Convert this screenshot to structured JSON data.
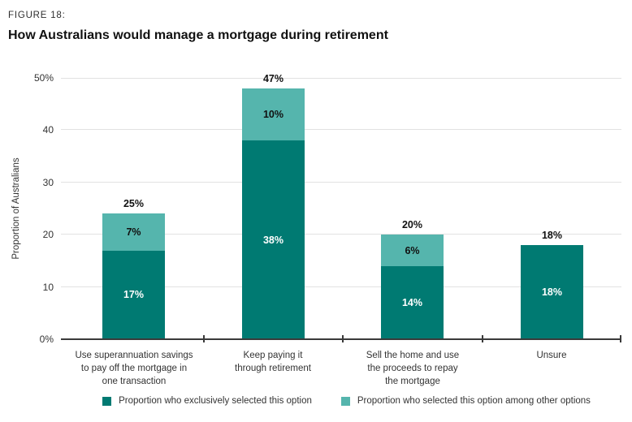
{
  "header": {
    "figure_label": "FIGURE 18:",
    "title": "How Australians would manage a mortgage during retirement"
  },
  "chart_data": {
    "type": "bar",
    "stacked": true,
    "title": "How Australians would manage a mortgage during retirement",
    "xlabel": "",
    "ylabel": "Proportion of Australians",
    "ylim": [
      0,
      50
    ],
    "ytick_labels": [
      "0%",
      "10",
      "20",
      "30",
      "40",
      "50%"
    ],
    "grid": "horizontal",
    "legend_position": "bottom",
    "categories": [
      "Use superannuation savings\nto pay off the mortgage in\none transaction",
      "Keep paying it\nthrough retirement",
      "Sell the home and use\nthe proceeds to repay\nthe mortgage",
      "Unsure"
    ],
    "series": [
      {
        "name": "Proportion who exclusively selected this option",
        "color": "#007a72",
        "values": [
          17,
          38,
          14,
          18
        ]
      },
      {
        "name": "Proportion who selected this option among other options",
        "color": "#55b5ad",
        "values": [
          7,
          10,
          6,
          0
        ]
      }
    ],
    "bars": [
      {
        "exclusive": 17,
        "exclusive_label": "17%",
        "among": 7,
        "among_label": "7%",
        "total_label": "25%"
      },
      {
        "exclusive": 38,
        "exclusive_label": "38%",
        "among": 10,
        "among_label": "10%",
        "total_label": "47%"
      },
      {
        "exclusive": 14,
        "exclusive_label": "14%",
        "among": 6,
        "among_label": "6%",
        "total_label": "20%"
      },
      {
        "exclusive": 18,
        "exclusive_label": "18%",
        "among": 0,
        "among_label": "",
        "total_label": "18%"
      }
    ]
  },
  "colors": {
    "exclusive": "#007a72",
    "among": "#55b5ad",
    "axis": "#3a3a3a",
    "gridline": "#e2e2e2",
    "text": "#333333",
    "title_text": "#111111"
  }
}
